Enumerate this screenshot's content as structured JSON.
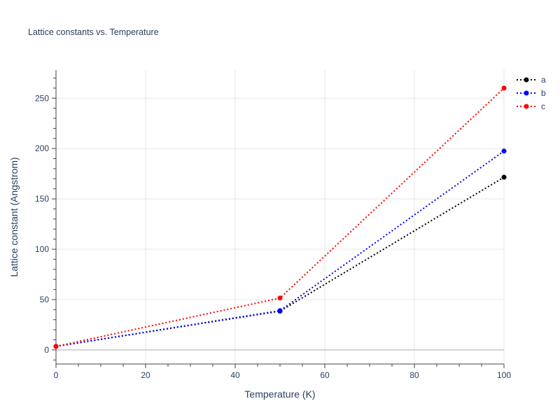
{
  "chart_data": {
    "type": "line",
    "title": "Lattice constants vs. Temperature",
    "xlabel": "Temperature (K)",
    "ylabel": "Lattice constant (Angstrom)",
    "xlim": [
      0,
      100
    ],
    "ylim": [
      -14,
      278
    ],
    "xticks": [
      0,
      20,
      40,
      60,
      80,
      100
    ],
    "yticks": [
      0,
      50,
      100,
      150,
      200,
      250
    ],
    "grid": true,
    "legend_position": "top-right",
    "line_style": "dotted",
    "x": [
      0,
      50,
      100
    ],
    "series": [
      {
        "name": "a",
        "color": "#000000",
        "values": [
          3.5,
          38.5,
          171.5
        ]
      },
      {
        "name": "b",
        "color": "#0000ff",
        "values": [
          3.5,
          39.0,
          197.5
        ]
      },
      {
        "name": "c",
        "color": "#ff0000",
        "values": [
          3.5,
          51.5,
          260.0
        ]
      }
    ]
  }
}
